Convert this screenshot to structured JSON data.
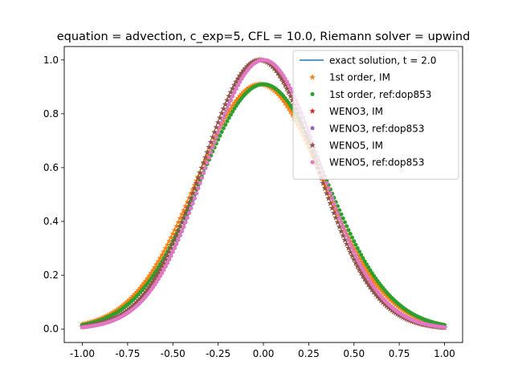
{
  "chart_data": {
    "type": "scatter",
    "title": "equation = advection, c_exp=5, CFL = 10.0, Riemann solver = upwind",
    "xlabel": "",
    "ylabel": "",
    "xlim": [
      -1.1,
      1.1
    ],
    "ylim": [
      -0.05,
      1.05
    ],
    "xticks": [
      "-1.00",
      "-0.75",
      "-0.50",
      "-0.25",
      "0.00",
      "0.25",
      "0.50",
      "0.75",
      "1.00"
    ],
    "xtick_values": [
      -1.0,
      -0.75,
      -0.5,
      -0.25,
      0.0,
      0.25,
      0.5,
      0.75,
      1.0
    ],
    "yticks": [
      "0.0",
      "0.2",
      "0.4",
      "0.6",
      "0.8",
      "1.0"
    ],
    "ytick_values": [
      0.0,
      0.2,
      0.4,
      0.6,
      0.8,
      1.0
    ],
    "grid": false,
    "legend_position": "top-right",
    "x_domain": [
      -1.0,
      1.0
    ],
    "points_per_series": 201,
    "series": [
      {
        "name": "exact solution, t = 2.0",
        "kind": "line",
        "marker": "none",
        "color": "#1f77b4",
        "peak": 1.0,
        "width": 5.0,
        "offset": 0.0
      },
      {
        "name": "1st order, IM",
        "kind": "scatter",
        "marker": "star",
        "color": "#ff7f0e",
        "peak": 0.91,
        "width": 4.1,
        "offset": -0.02
      },
      {
        "name": "1st order, ref:dop853",
        "kind": "scatter",
        "marker": "dot",
        "color": "#2ca02c",
        "peak": 0.91,
        "width": 4.1,
        "offset": 0.0
      },
      {
        "name": "WENO3, IM",
        "kind": "scatter",
        "marker": "star",
        "color": "#d62728",
        "peak": 1.0,
        "width": 5.0,
        "offset": -0.02
      },
      {
        "name": "WENO3, ref:dop853",
        "kind": "scatter",
        "marker": "dot",
        "color": "#9467bd",
        "peak": 1.0,
        "width": 5.0,
        "offset": 0.0
      },
      {
        "name": "WENO5, IM",
        "kind": "scatter",
        "marker": "star",
        "color": "#8c564b",
        "peak": 1.0,
        "width": 5.0,
        "offset": -0.02
      },
      {
        "name": "WENO5, ref:dop853",
        "kind": "scatter",
        "marker": "dot",
        "color": "#e377c2",
        "peak": 1.0,
        "width": 5.0,
        "offset": 0.0
      }
    ]
  }
}
